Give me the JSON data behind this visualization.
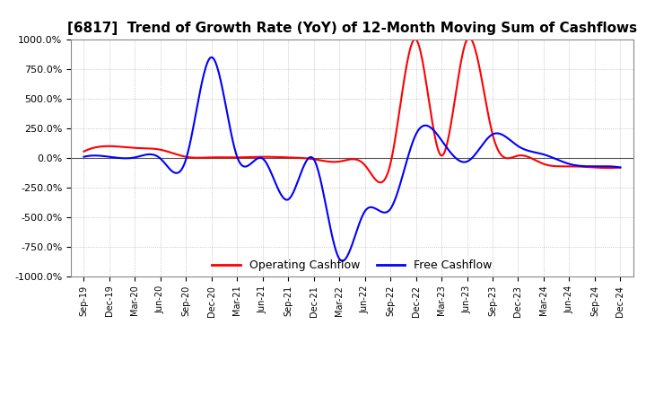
{
  "title": "[6817]  Trend of Growth Rate (YoY) of 12-Month Moving Sum of Cashflows",
  "title_fontsize": 11,
  "ylim": [
    -1000,
    1000
  ],
  "yticks": [
    1000,
    750,
    500,
    250,
    0,
    -250,
    -500,
    -750,
    -1000
  ],
  "ytick_labels": [
    "1000.0%",
    "750.0%",
    "500.0%",
    "250.0%",
    "0.0%",
    "-250.0%",
    "-500.0%",
    "-750.0%",
    "-1000.0%"
  ],
  "background_color": "#ffffff",
  "grid_color": "#aaaaaa",
  "operating_color": "#ff0000",
  "free_color": "#0000ff",
  "legend_labels": [
    "Operating Cashflow",
    "Free Cashflow"
  ],
  "x_labels": [
    "Sep-19",
    "Dec-19",
    "Mar-20",
    "Jun-20",
    "Sep-20",
    "Dec-20",
    "Mar-21",
    "Jun-21",
    "Sep-21",
    "Dec-21",
    "Mar-22",
    "Jun-22",
    "Sep-22",
    "Dec-22",
    "Mar-23",
    "Jun-23",
    "Sep-23",
    "Dec-23",
    "Mar-24",
    "Jun-24",
    "Sep-24",
    "Dec-24"
  ],
  "operating_cashflow": [
    55,
    100,
    85,
    70,
    10,
    5,
    5,
    10,
    5,
    -10,
    -30,
    -60,
    -50,
    1000,
    20,
    1000,
    200,
    20,
    -50,
    -70,
    -80,
    -80
  ],
  "free_cashflow": [
    10,
    10,
    5,
    -5,
    -10,
    850,
    10,
    -5,
    -350,
    -10,
    -850,
    -450,
    -430,
    200,
    150,
    -30,
    200,
    100,
    30,
    -50,
    -70,
    -80
  ]
}
